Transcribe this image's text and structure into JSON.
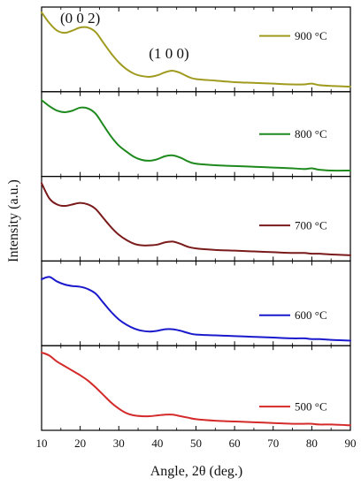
{
  "chart_data": {
    "type": "line",
    "xlabel": "Angle, 2θ (deg.)",
    "ylabel": "Intensity (a.u.)",
    "xlim": [
      10,
      90
    ],
    "x_ticks": [
      10,
      20,
      30,
      40,
      50,
      60,
      70,
      80,
      90
    ],
    "y_ticks_shown": false,
    "grid": false,
    "legend_position": "right, inside each panel",
    "annotations": [
      {
        "text": "(0 0 2)",
        "x": 20,
        "panel": 0
      },
      {
        "text": "(1 0 0)",
        "x": 43,
        "panel": 0
      }
    ],
    "x": [
      10,
      12,
      14,
      16,
      18,
      20,
      22,
      24,
      26,
      28,
      30,
      32,
      34,
      36,
      38,
      40,
      42,
      44,
      46,
      48,
      50,
      55,
      60,
      65,
      70,
      75,
      78,
      80,
      82,
      85,
      90
    ],
    "series": [
      {
        "name": "900 °C",
        "color": "#a09b1f",
        "values": [
          1.0,
          0.86,
          0.76,
          0.73,
          0.76,
          0.8,
          0.8,
          0.74,
          0.6,
          0.46,
          0.34,
          0.25,
          0.19,
          0.16,
          0.15,
          0.17,
          0.21,
          0.23,
          0.2,
          0.15,
          0.12,
          0.1,
          0.08,
          0.07,
          0.06,
          0.05,
          0.05,
          0.06,
          0.04,
          0.03,
          0.02
        ]
      },
      {
        "name": "800 °C",
        "color": "#1e8a1e",
        "values": [
          0.96,
          0.88,
          0.82,
          0.8,
          0.82,
          0.86,
          0.85,
          0.78,
          0.63,
          0.48,
          0.36,
          0.28,
          0.21,
          0.17,
          0.16,
          0.18,
          0.22,
          0.23,
          0.2,
          0.15,
          0.12,
          0.1,
          0.09,
          0.08,
          0.07,
          0.06,
          0.05,
          0.06,
          0.04,
          0.03,
          0.03
        ]
      },
      {
        "name": "700 °C",
        "color": "#7a1a1a",
        "values": [
          0.98,
          0.78,
          0.7,
          0.68,
          0.7,
          0.72,
          0.7,
          0.64,
          0.52,
          0.4,
          0.3,
          0.23,
          0.18,
          0.16,
          0.16,
          0.17,
          0.2,
          0.21,
          0.18,
          0.14,
          0.12,
          0.1,
          0.09,
          0.08,
          0.07,
          0.06,
          0.06,
          0.05,
          0.05,
          0.04,
          0.03
        ]
      },
      {
        "name": "600 °C",
        "color": "#1a1acc",
        "values": [
          0.83,
          0.86,
          0.8,
          0.76,
          0.74,
          0.73,
          0.7,
          0.64,
          0.52,
          0.4,
          0.3,
          0.23,
          0.18,
          0.15,
          0.14,
          0.15,
          0.17,
          0.17,
          0.15,
          0.12,
          0.1,
          0.09,
          0.08,
          0.07,
          0.06,
          0.05,
          0.05,
          0.04,
          0.04,
          0.03,
          0.02
        ]
      },
      {
        "name": "500 °C",
        "color": "#d42a2a",
        "values": [
          0.98,
          0.94,
          0.86,
          0.8,
          0.74,
          0.68,
          0.61,
          0.52,
          0.42,
          0.32,
          0.24,
          0.18,
          0.15,
          0.14,
          0.14,
          0.15,
          0.16,
          0.16,
          0.14,
          0.12,
          0.1,
          0.08,
          0.07,
          0.06,
          0.05,
          0.04,
          0.04,
          0.04,
          0.03,
          0.03,
          0.02
        ]
      }
    ]
  }
}
